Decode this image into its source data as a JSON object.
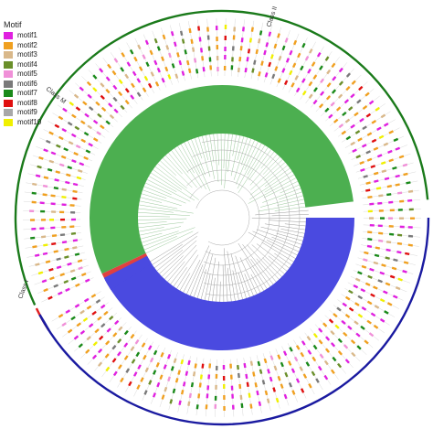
{
  "legend": {
    "title": "Motif",
    "items": [
      {
        "label": "motif1",
        "color": "#e020e0"
      },
      {
        "label": "motif2",
        "color": "#f0a020"
      },
      {
        "label": "motif3",
        "color": "#d9b88a"
      },
      {
        "label": "motif4",
        "color": "#6a8f2a"
      },
      {
        "label": "motif5",
        "color": "#f090d8"
      },
      {
        "label": "motif6",
        "color": "#7a7a7a"
      },
      {
        "label": "motif7",
        "color": "#1a8a1a"
      },
      {
        "label": "motif8",
        "color": "#e01010"
      },
      {
        "label": "motif9",
        "color": "#a8a8a8"
      },
      {
        "label": "motif10",
        "color": "#f0f000"
      }
    ]
  },
  "classes": [
    {
      "label": "Class II",
      "color": "#1a7a1a",
      "fill": "#4caf50"
    },
    {
      "label": "Class M",
      "color": "#e02020",
      "fill": "#e04040"
    },
    {
      "label": "Class I",
      "color": "#1a1aa0",
      "fill": "#4a4ae0"
    }
  ]
}
